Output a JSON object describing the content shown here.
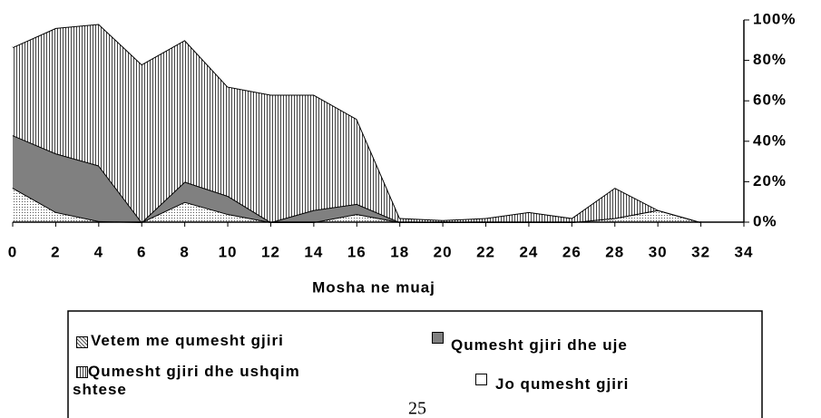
{
  "chart_data": {
    "type": "stacked_area",
    "x_label": "Mosha ne muaj",
    "x": [
      0,
      2,
      4,
      6,
      8,
      10,
      12,
      14,
      16,
      18,
      20,
      22,
      24,
      26,
      28,
      30,
      32
    ],
    "xlim": [
      0,
      34
    ],
    "xticks": [
      0,
      2,
      4,
      6,
      8,
      10,
      12,
      14,
      16,
      18,
      20,
      22,
      24,
      26,
      28,
      30,
      32,
      34
    ],
    "ylim": [
      0,
      100
    ],
    "yticks": [
      {
        "value": 0,
        "label": "0%"
      },
      {
        "value": 20,
        "label": "20%"
      },
      {
        "value": 40,
        "label": "40%"
      },
      {
        "value": 60,
        "label": "60%"
      },
      {
        "value": 80,
        "label": "80%"
      },
      {
        "value": 100,
        "label": "100%"
      }
    ],
    "series": [
      {
        "name": "Vetem me qumesht gjiri",
        "color": "#ffffff",
        "pattern": "dots",
        "values": [
          17,
          5,
          0.5,
          0,
          10,
          4,
          0,
          0,
          4,
          0,
          0,
          0,
          0,
          0,
          2,
          6,
          0
        ]
      },
      {
        "name": "Qumesht gjiri dhe uje",
        "color": "#808080",
        "pattern": "solid",
        "values": [
          26,
          29,
          27.5,
          0,
          10,
          9,
          0,
          6,
          5,
          0,
          0,
          0,
          0,
          0,
          0,
          0,
          0
        ]
      },
      {
        "name": "Qumesht gjiri dhe ushqim shtese",
        "color": "#ffffff",
        "pattern": "stripes",
        "values": [
          43.5,
          62,
          70,
          78,
          70,
          54,
          63,
          57,
          42,
          2,
          1,
          2,
          5,
          2,
          15,
          0,
          0
        ]
      },
      {
        "name": "Jo qumesht gjiri",
        "color": "#ffffff",
        "pattern": "solid",
        "values": [
          13.5,
          4,
          2,
          22,
          10,
          33,
          37,
          37,
          49,
          98,
          99,
          98,
          95,
          98,
          83,
          94,
          100
        ]
      }
    ]
  },
  "page_number": "25"
}
